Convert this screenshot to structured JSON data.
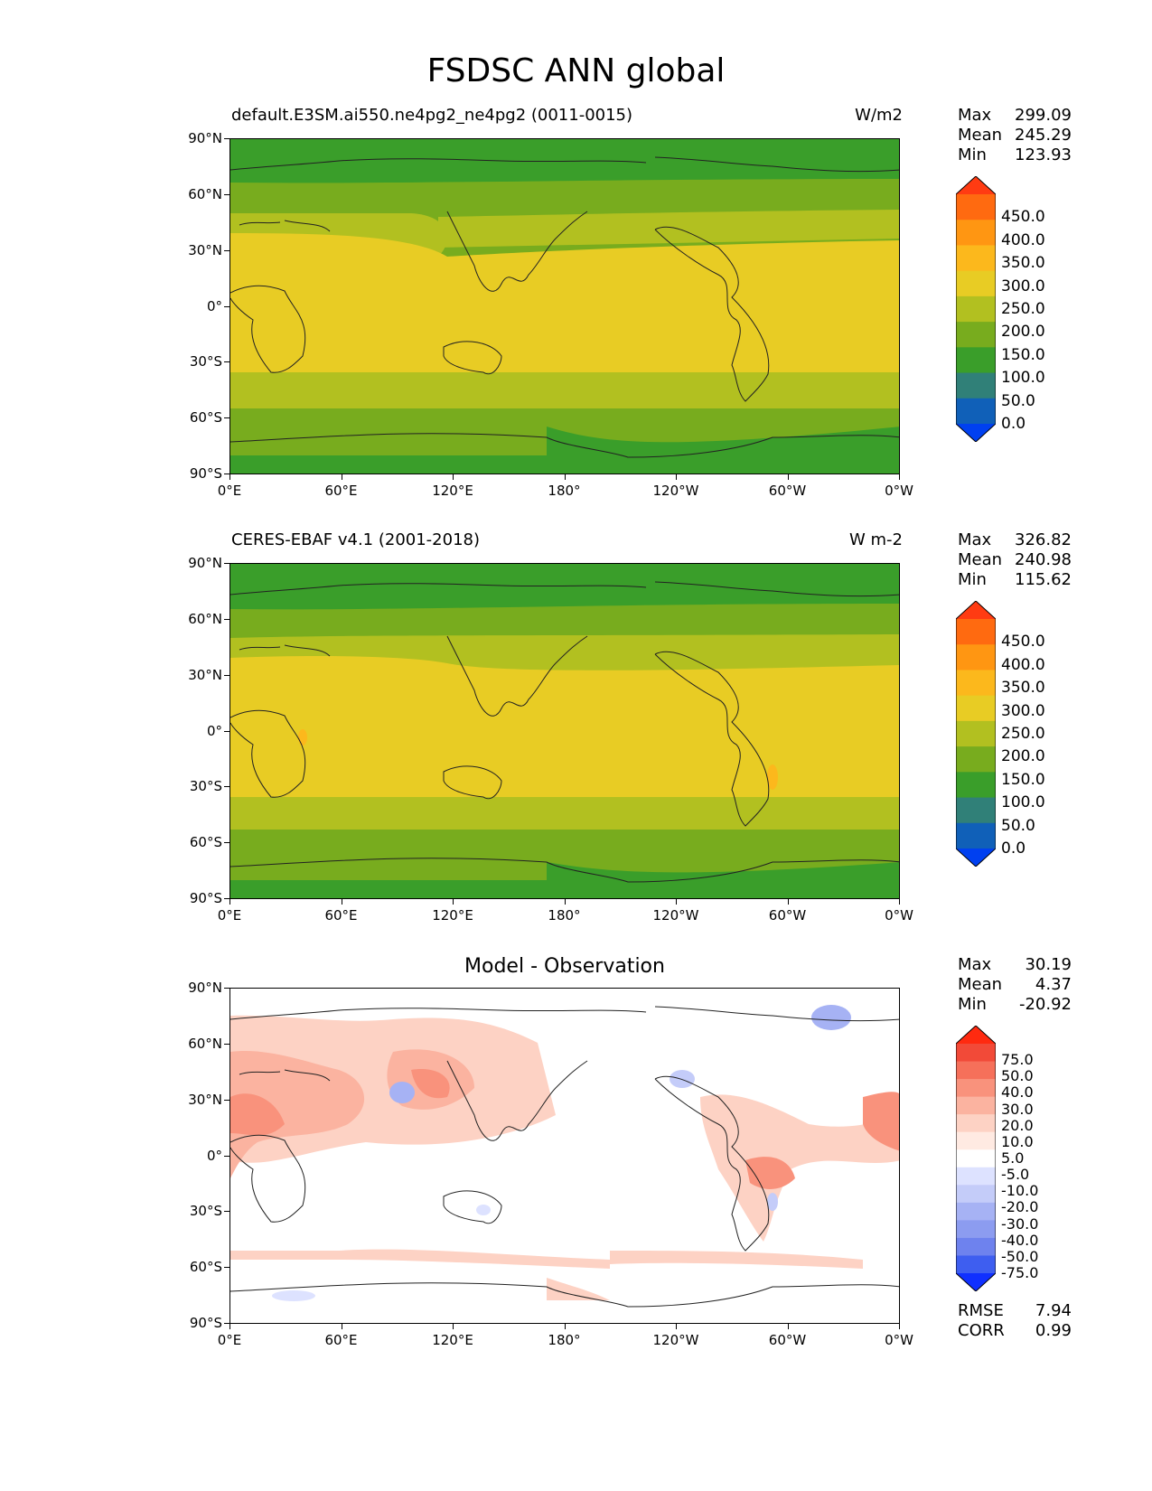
{
  "title": "FSDSC ANN global",
  "axes": {
    "lat_ticks": [
      "90°N",
      "60°N",
      "30°N",
      "0°",
      "30°S",
      "60°S",
      "90°S"
    ],
    "lon_ticks": [
      "0°E",
      "60°E",
      "120°E",
      "180°",
      "120°W",
      "60°W",
      "0°W"
    ]
  },
  "panels": [
    {
      "title_left": "default.E3SM.ai550.ne4pg2_ne4pg2 (0011-0015)",
      "title_right": "W/m2",
      "stats": {
        "max_label": "Max",
        "max": "299.09",
        "mean_label": "Mean",
        "mean": "245.29",
        "min_label": "Min",
        "min": "123.93"
      },
      "colorbar_labels": [
        "450.0",
        "400.0",
        "350.0",
        "300.0",
        "250.0",
        "200.0",
        "150.0",
        "100.0",
        "50.0",
        "0.0"
      ]
    },
    {
      "title_left": "CERES-EBAF v4.1 (2001-2018)",
      "title_right": "W m-2",
      "stats": {
        "max_label": "Max",
        "max": "326.82",
        "mean_label": "Mean",
        "mean": "240.98",
        "min_label": "Min",
        "min": "115.62"
      },
      "colorbar_labels": [
        "450.0",
        "400.0",
        "350.0",
        "300.0",
        "250.0",
        "200.0",
        "150.0",
        "100.0",
        "50.0",
        "0.0"
      ]
    },
    {
      "title_center": "Model - Observation",
      "stats": {
        "max_label": "Max",
        "max": "30.19",
        "mean_label": "Mean",
        "mean": "4.37",
        "min_label": "Min",
        "min": "-20.92"
      },
      "colorbar_labels": [
        "75.0",
        "50.0",
        "40.0",
        "30.0",
        "20.0",
        "10.0",
        "5.0",
        "-5.0",
        "-10.0",
        "-20.0",
        "-30.0",
        "-40.0",
        "-50.0",
        "-75.0"
      ],
      "rmse_label": "RMSE",
      "rmse": "7.94",
      "corr_label": "CORR",
      "corr": "0.99"
    }
  ],
  "colors": {
    "abs_colorbar": [
      "#ff3b12",
      "#ff6a10",
      "#ff9612",
      "#fcb81c",
      "#e8cc24",
      "#b2c020",
      "#78ac1e",
      "#3a9e2a",
      "#308078",
      "#1060b8",
      "#0040f0"
    ],
    "diff_colorbar": [
      "#ff2a10",
      "#f24a38",
      "#f6705a",
      "#f9927c",
      "#fbb3a0",
      "#fdd2c4",
      "#ffeae2",
      "#ffffff",
      "#dde2ff",
      "#c4ccf9",
      "#a6b2f4",
      "#8c9cf0",
      "#6e82ee",
      "#3e5ef0",
      "#1030ff"
    ]
  }
}
